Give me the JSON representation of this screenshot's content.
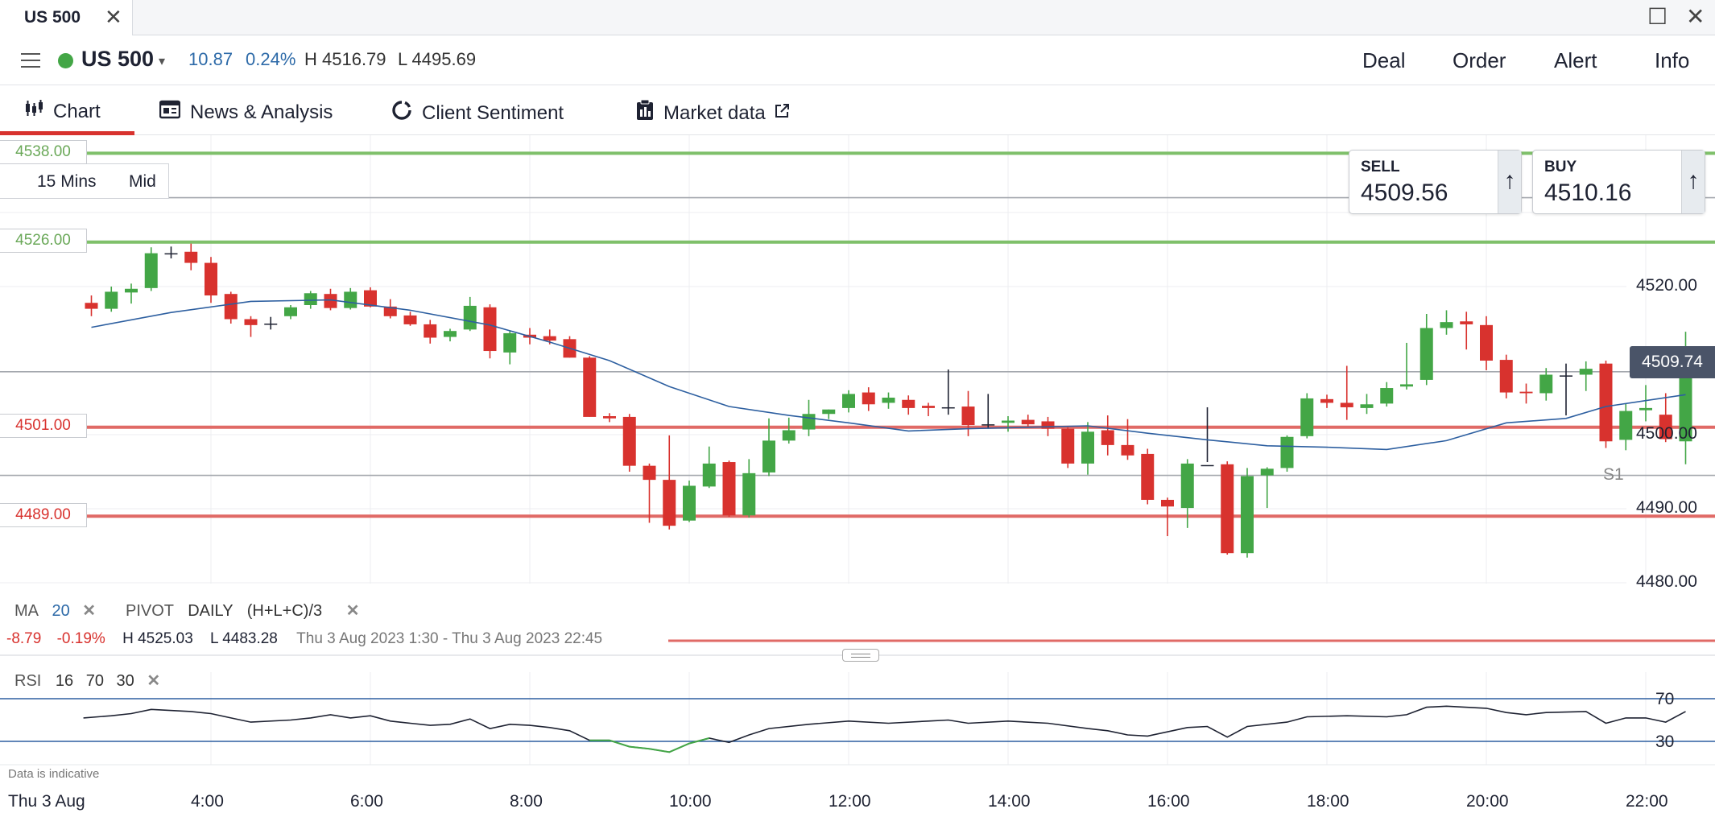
{
  "window": {
    "tab_title": "US 500",
    "close_glyph": "✕",
    "maximize_glyph": "☐",
    "window_close_glyph": "✕"
  },
  "header": {
    "instrument": "US 500",
    "caret": "▾",
    "change": "10.87",
    "change_pct": "0.24%",
    "high": "H 4516.79",
    "low": "L 4495.69",
    "menu": [
      "Deal",
      "Order",
      "Alert",
      "Info"
    ]
  },
  "subnav": {
    "tabs": [
      "Chart",
      "News & Analysis",
      "Client Sentiment",
      "Market data"
    ],
    "active": 0,
    "external_icon": "external-link-icon"
  },
  "timeframe": {
    "interval": "15 Mins",
    "price_type": "Mid"
  },
  "quote": {
    "sell_label": "SELL",
    "sell_value": "4509.56",
    "buy_label": "BUY",
    "buy_value": "4510.16",
    "arrow": "↑"
  },
  "levels": {
    "resistance": [
      "4538.00",
      "4526.00"
    ],
    "support": [
      "4501.00",
      "4489.00"
    ],
    "current": "4509.74",
    "pivot_label": "S1"
  },
  "colors": {
    "up": "#43a646",
    "down": "#d8322e",
    "ma": "#2d5fa0",
    "resistance": "#7fc06a",
    "support": "#e06a66"
  },
  "indicators": {
    "ma_label": "MA",
    "ma_period": "20",
    "pivot_label": "PIVOT",
    "pivot_period": "DAILY",
    "pivot_formula": "(H+L+C)/3",
    "remove_glyph": "✕"
  },
  "info": {
    "change": "-8.79",
    "change_pct": "-0.19%",
    "high": "H 4525.03",
    "low": "L 4483.28",
    "range": "Thu 3 Aug 2023 1:30 - Thu 3 Aug 2023 22:45"
  },
  "rsi": {
    "label": "RSI",
    "period": "16",
    "upper": "70",
    "lower": "30"
  },
  "disclaimer": "Data is indicative",
  "chart_data": {
    "type": "candlestick",
    "y_ticks": [
      "4520.00",
      "4500.00",
      "4490.00",
      "4480.00"
    ],
    "ylim": [
      4478,
      4540
    ],
    "x_ticks": [
      "Thu 3 Aug",
      "4:00",
      "6:00",
      "8:00",
      "10:00",
      "12:00",
      "14:00",
      "16:00",
      "18:00",
      "20:00",
      "22:00"
    ],
    "x_range_hours": [
      2.4,
      22.6
    ],
    "candles": [
      {
        "t": 2.5,
        "o": 4517.8,
        "h": 4518.8,
        "l": 4516.0,
        "c": 4517.0
      },
      {
        "t": 2.75,
        "o": 4517.0,
        "h": 4520.0,
        "l": 4516.6,
        "c": 4519.3
      },
      {
        "t": 3.0,
        "o": 4519.2,
        "h": 4520.4,
        "l": 4517.7,
        "c": 4519.7
      },
      {
        "t": 3.25,
        "o": 4519.8,
        "h": 4525.3,
        "l": 4519.4,
        "c": 4524.5
      },
      {
        "t": 3.5,
        "o": 4524.5,
        "h": 4525.4,
        "l": 4523.8,
        "c": 4524.5
      },
      {
        "t": 3.75,
        "o": 4524.7,
        "h": 4525.8,
        "l": 4522.2,
        "c": 4523.2
      },
      {
        "t": 4.0,
        "o": 4523.2,
        "h": 4524.0,
        "l": 4517.8,
        "c": 4518.8
      },
      {
        "t": 4.25,
        "o": 4519.0,
        "h": 4519.3,
        "l": 4515.0,
        "c": 4515.6
      },
      {
        "t": 4.5,
        "o": 4515.6,
        "h": 4516.0,
        "l": 4513.2,
        "c": 4514.8
      },
      {
        "t": 4.75,
        "o": 4515.0,
        "h": 4515.9,
        "l": 4514.2,
        "c": 4515.0
      },
      {
        "t": 5.0,
        "o": 4516.0,
        "h": 4517.5,
        "l": 4515.6,
        "c": 4517.2
      },
      {
        "t": 5.25,
        "o": 4517.5,
        "h": 4519.4,
        "l": 4517.0,
        "c": 4519.1
      },
      {
        "t": 5.5,
        "o": 4519.0,
        "h": 4519.7,
        "l": 4516.8,
        "c": 4517.1
      },
      {
        "t": 5.75,
        "o": 4517.1,
        "h": 4519.8,
        "l": 4516.9,
        "c": 4519.3
      },
      {
        "t": 6.0,
        "o": 4519.5,
        "h": 4519.9,
        "l": 4517.2,
        "c": 4517.3
      },
      {
        "t": 6.25,
        "o": 4517.3,
        "h": 4518.3,
        "l": 4515.7,
        "c": 4516.0
      },
      {
        "t": 6.5,
        "o": 4516.1,
        "h": 4516.6,
        "l": 4514.7,
        "c": 4514.9
      },
      {
        "t": 6.75,
        "o": 4514.9,
        "h": 4515.5,
        "l": 4512.3,
        "c": 4513.1
      },
      {
        "t": 7.0,
        "o": 4513.2,
        "h": 4514.3,
        "l": 4512.6,
        "c": 4514.0
      },
      {
        "t": 7.25,
        "o": 4514.2,
        "h": 4518.6,
        "l": 4514.0,
        "c": 4517.4
      },
      {
        "t": 7.5,
        "o": 4517.2,
        "h": 4517.6,
        "l": 4510.3,
        "c": 4511.3
      },
      {
        "t": 7.75,
        "o": 4511.1,
        "h": 4514.1,
        "l": 4509.5,
        "c": 4513.7
      },
      {
        "t": 8.0,
        "o": 4513.5,
        "h": 4514.4,
        "l": 4512.2,
        "c": 4513.1
      },
      {
        "t": 8.25,
        "o": 4513.3,
        "h": 4514.2,
        "l": 4512.2,
        "c": 4512.7
      },
      {
        "t": 8.5,
        "o": 4512.9,
        "h": 4513.3,
        "l": 4510.4,
        "c": 4510.4
      },
      {
        "t": 8.75,
        "o": 4510.4,
        "h": 4510.6,
        "l": 4502.4,
        "c": 4502.4
      },
      {
        "t": 9.0,
        "o": 4502.5,
        "h": 4502.9,
        "l": 4501.7,
        "c": 4502.2
      },
      {
        "t": 9.25,
        "o": 4502.4,
        "h": 4502.8,
        "l": 4495.0,
        "c": 4495.8
      },
      {
        "t": 9.5,
        "o": 4495.8,
        "h": 4496.1,
        "l": 4488.1,
        "c": 4493.9
      },
      {
        "t": 9.75,
        "o": 4493.9,
        "h": 4499.9,
        "l": 4487.2,
        "c": 4487.7
      },
      {
        "t": 10.0,
        "o": 4488.4,
        "h": 4493.8,
        "l": 4488.2,
        "c": 4493.1
      },
      {
        "t": 10.25,
        "o": 4493.0,
        "h": 4498.4,
        "l": 4492.8,
        "c": 4496.1
      },
      {
        "t": 10.5,
        "o": 4496.3,
        "h": 4496.5,
        "l": 4488.9,
        "c": 4489.1
      },
      {
        "t": 10.75,
        "o": 4489.1,
        "h": 4496.7,
        "l": 4488.8,
        "c": 4494.8
      },
      {
        "t": 11.0,
        "o": 4494.9,
        "h": 4502.2,
        "l": 4494.4,
        "c": 4499.2
      },
      {
        "t": 11.25,
        "o": 4499.2,
        "h": 4502.3,
        "l": 4498.8,
        "c": 4500.6
      },
      {
        "t": 11.5,
        "o": 4500.7,
        "h": 4504.7,
        "l": 4499.8,
        "c": 4502.8
      },
      {
        "t": 11.75,
        "o": 4502.8,
        "h": 4503.4,
        "l": 4502.1,
        "c": 4503.4
      },
      {
        "t": 12.0,
        "o": 4503.6,
        "h": 4506.0,
        "l": 4503.0,
        "c": 4505.5
      },
      {
        "t": 12.25,
        "o": 4505.7,
        "h": 4506.4,
        "l": 4503.2,
        "c": 4504.1
      },
      {
        "t": 12.5,
        "o": 4504.3,
        "h": 4505.7,
        "l": 4503.5,
        "c": 4505.0
      },
      {
        "t": 12.75,
        "o": 4504.7,
        "h": 4505.3,
        "l": 4502.7,
        "c": 4503.6
      },
      {
        "t": 13.0,
        "o": 4503.9,
        "h": 4504.3,
        "l": 4502.5,
        "c": 4503.6
      },
      {
        "t": 13.25,
        "o": 4503.7,
        "h": 4508.8,
        "l": 4502.7,
        "c": 4503.7
      },
      {
        "t": 13.5,
        "o": 4503.8,
        "h": 4505.9,
        "l": 4499.8,
        "c": 4501.3
      },
      {
        "t": 13.75,
        "o": 4501.3,
        "h": 4505.5,
        "l": 4500.8,
        "c": 4501.4
      },
      {
        "t": 14.0,
        "o": 4501.6,
        "h": 4502.5,
        "l": 4500.4,
        "c": 4501.9
      },
      {
        "t": 14.25,
        "o": 4502.0,
        "h": 4502.7,
        "l": 4501.1,
        "c": 4501.4
      },
      {
        "t": 14.5,
        "o": 4501.8,
        "h": 4502.4,
        "l": 4499.8,
        "c": 4500.8
      },
      {
        "t": 14.75,
        "o": 4500.8,
        "h": 4501.0,
        "l": 4495.5,
        "c": 4496.1
      },
      {
        "t": 15.0,
        "o": 4496.1,
        "h": 4501.7,
        "l": 4494.6,
        "c": 4500.4
      },
      {
        "t": 15.25,
        "o": 4500.6,
        "h": 4502.6,
        "l": 4497.2,
        "c": 4498.6
      },
      {
        "t": 15.5,
        "o": 4498.6,
        "h": 4502.1,
        "l": 4496.6,
        "c": 4497.2
      },
      {
        "t": 15.75,
        "o": 4497.4,
        "h": 4498.1,
        "l": 4490.6,
        "c": 4491.2
      },
      {
        "t": 16.0,
        "o": 4491.2,
        "h": 4491.5,
        "l": 4486.3,
        "c": 4490.3
      },
      {
        "t": 16.25,
        "o": 4490.1,
        "h": 4496.7,
        "l": 4487.4,
        "c": 4496.1
      },
      {
        "t": 16.5,
        "o": 4495.9,
        "h": 4503.7,
        "l": 4496.3,
        "c": 4495.9
      },
      {
        "t": 16.75,
        "o": 4496.0,
        "h": 4496.4,
        "l": 4483.8,
        "c": 4484.0
      },
      {
        "t": 17.0,
        "o": 4484.0,
        "h": 4495.5,
        "l": 4483.4,
        "c": 4494.4
      },
      {
        "t": 17.25,
        "o": 4494.5,
        "h": 4495.6,
        "l": 4490.1,
        "c": 4495.4
      },
      {
        "t": 17.5,
        "o": 4495.5,
        "h": 4499.9,
        "l": 4495.0,
        "c": 4499.7
      },
      {
        "t": 17.75,
        "o": 4499.8,
        "h": 4505.6,
        "l": 4499.5,
        "c": 4504.9
      },
      {
        "t": 18.0,
        "o": 4504.8,
        "h": 4505.4,
        "l": 4503.6,
        "c": 4504.3
      },
      {
        "t": 18.25,
        "o": 4504.3,
        "h": 4509.3,
        "l": 4502.0,
        "c": 4503.7
      },
      {
        "t": 18.5,
        "o": 4503.6,
        "h": 4505.5,
        "l": 4502.8,
        "c": 4504.1
      },
      {
        "t": 18.75,
        "o": 4504.2,
        "h": 4507.1,
        "l": 4503.8,
        "c": 4506.3
      },
      {
        "t": 19.0,
        "o": 4506.5,
        "h": 4512.4,
        "l": 4506.1,
        "c": 4506.8
      },
      {
        "t": 19.25,
        "o": 4507.4,
        "h": 4516.3,
        "l": 4506.7,
        "c": 4514.4
      },
      {
        "t": 19.5,
        "o": 4514.4,
        "h": 4516.8,
        "l": 4513.5,
        "c": 4515.2
      },
      {
        "t": 19.75,
        "o": 4515.3,
        "h": 4516.6,
        "l": 4511.5,
        "c": 4514.9
      },
      {
        "t": 20.0,
        "o": 4514.8,
        "h": 4516.0,
        "l": 4508.7,
        "c": 4510.0
      },
      {
        "t": 20.25,
        "o": 4510.1,
        "h": 4510.8,
        "l": 4504.9,
        "c": 4505.7
      },
      {
        "t": 20.5,
        "o": 4505.8,
        "h": 4506.9,
        "l": 4504.2,
        "c": 4505.6
      },
      {
        "t": 20.75,
        "o": 4505.6,
        "h": 4509.0,
        "l": 4504.6,
        "c": 4508.1
      },
      {
        "t": 21.0,
        "o": 4508.0,
        "h": 4509.6,
        "l": 4502.6,
        "c": 4508.0
      },
      {
        "t": 21.25,
        "o": 4508.1,
        "h": 4509.9,
        "l": 4505.9,
        "c": 4508.9
      },
      {
        "t": 21.5,
        "o": 4509.6,
        "h": 4510.0,
        "l": 4498.2,
        "c": 4499.1
      },
      {
        "t": 21.75,
        "o": 4499.3,
        "h": 4504.2,
        "l": 4497.9,
        "c": 4503.2
      },
      {
        "t": 22.0,
        "o": 4503.3,
        "h": 4506.7,
        "l": 4501.8,
        "c": 4503.6
      },
      {
        "t": 22.25,
        "o": 4502.7,
        "h": 4505.6,
        "l": 4499.0,
        "c": 4499.4
      },
      {
        "t": 22.5,
        "o": 4499.1,
        "h": 4513.9,
        "l": 4496.0,
        "c": 4509.9
      }
    ],
    "ma20": [
      {
        "t": 2.5,
        "v": 4514.5
      },
      {
        "t": 3.5,
        "v": 4516.5
      },
      {
        "t": 4.5,
        "v": 4518.0
      },
      {
        "t": 5.5,
        "v": 4518.2
      },
      {
        "t": 6.5,
        "v": 4516.8
      },
      {
        "t": 7.5,
        "v": 4514.8
      },
      {
        "t": 8.25,
        "v": 4512.5
      },
      {
        "t": 9.0,
        "v": 4510.0
      },
      {
        "t": 9.75,
        "v": 4506.5
      },
      {
        "t": 10.5,
        "v": 4503.8
      },
      {
        "t": 11.25,
        "v": 4502.6
      },
      {
        "t": 12.0,
        "v": 4501.6
      },
      {
        "t": 12.75,
        "v": 4500.5
      },
      {
        "t": 13.5,
        "v": 4500.8
      },
      {
        "t": 14.25,
        "v": 4501.0
      },
      {
        "t": 15.0,
        "v": 4501.2
      },
      {
        "t": 15.75,
        "v": 4500.2
      },
      {
        "t": 16.5,
        "v": 4499.3
      },
      {
        "t": 17.25,
        "v": 4498.5
      },
      {
        "t": 18.0,
        "v": 4498.3
      },
      {
        "t": 18.75,
        "v": 4498.0
      },
      {
        "t": 19.5,
        "v": 4499.2
      },
      {
        "t": 20.25,
        "v": 4501.6
      },
      {
        "t": 21.0,
        "v": 4502.2
      },
      {
        "t": 21.5,
        "v": 4503.8
      },
      {
        "t": 22.5,
        "v": 4505.4
      }
    ],
    "rsi": [
      {
        "t": 2.4,
        "v": 52
      },
      {
        "t": 2.75,
        "v": 54
      },
      {
        "t": 3.0,
        "v": 56
      },
      {
        "t": 3.25,
        "v": 60
      },
      {
        "t": 3.75,
        "v": 58
      },
      {
        "t": 4.0,
        "v": 56
      },
      {
        "t": 4.25,
        "v": 52
      },
      {
        "t": 4.5,
        "v": 48
      },
      {
        "t": 5.0,
        "v": 50
      },
      {
        "t": 5.25,
        "v": 52
      },
      {
        "t": 5.5,
        "v": 55
      },
      {
        "t": 5.75,
        "v": 52
      },
      {
        "t": 6.0,
        "v": 54
      },
      {
        "t": 6.25,
        "v": 49
      },
      {
        "t": 6.5,
        "v": 47
      },
      {
        "t": 6.75,
        "v": 45
      },
      {
        "t": 7.0,
        "v": 46
      },
      {
        "t": 7.25,
        "v": 51
      },
      {
        "t": 7.5,
        "v": 42
      },
      {
        "t": 7.75,
        "v": 46
      },
      {
        "t": 8.0,
        "v": 45
      },
      {
        "t": 8.25,
        "v": 43
      },
      {
        "t": 8.5,
        "v": 40
      },
      {
        "t": 8.75,
        "v": 31
      },
      {
        "t": 9.0,
        "v": 31
      },
      {
        "t": 9.25,
        "v": 25
      },
      {
        "t": 9.5,
        "v": 23
      },
      {
        "t": 9.75,
        "v": 20
      },
      {
        "t": 10.0,
        "v": 28
      },
      {
        "t": 10.25,
        "v": 33
      },
      {
        "t": 10.5,
        "v": 29
      },
      {
        "t": 10.75,
        "v": 36
      },
      {
        "t": 11.0,
        "v": 42
      },
      {
        "t": 11.5,
        "v": 46
      },
      {
        "t": 12.0,
        "v": 49
      },
      {
        "t": 12.5,
        "v": 47
      },
      {
        "t": 13.0,
        "v": 49
      },
      {
        "t": 13.25,
        "v": 50
      },
      {
        "t": 13.5,
        "v": 47
      },
      {
        "t": 14.0,
        "v": 49
      },
      {
        "t": 14.5,
        "v": 47
      },
      {
        "t": 15.0,
        "v": 42
      },
      {
        "t": 15.25,
        "v": 40
      },
      {
        "t": 15.5,
        "v": 36
      },
      {
        "t": 15.75,
        "v": 35
      },
      {
        "t": 16.25,
        "v": 43
      },
      {
        "t": 16.5,
        "v": 44
      },
      {
        "t": 16.75,
        "v": 34
      },
      {
        "t": 17.0,
        "v": 44
      },
      {
        "t": 17.5,
        "v": 48
      },
      {
        "t": 17.75,
        "v": 53
      },
      {
        "t": 18.25,
        "v": 54
      },
      {
        "t": 18.75,
        "v": 53
      },
      {
        "t": 19.0,
        "v": 55
      },
      {
        "t": 19.25,
        "v": 62
      },
      {
        "t": 19.5,
        "v": 63
      },
      {
        "t": 20.0,
        "v": 61
      },
      {
        "t": 20.25,
        "v": 57
      },
      {
        "t": 20.5,
        "v": 55
      },
      {
        "t": 20.75,
        "v": 57
      },
      {
        "t": 21.25,
        "v": 58
      },
      {
        "t": 21.5,
        "v": 47
      },
      {
        "t": 21.75,
        "v": 52
      },
      {
        "t": 22.0,
        "v": 52
      },
      {
        "t": 22.25,
        "v": 48
      },
      {
        "t": 22.5,
        "v": 58
      }
    ],
    "rsi_ylim": [
      0,
      100
    ]
  }
}
